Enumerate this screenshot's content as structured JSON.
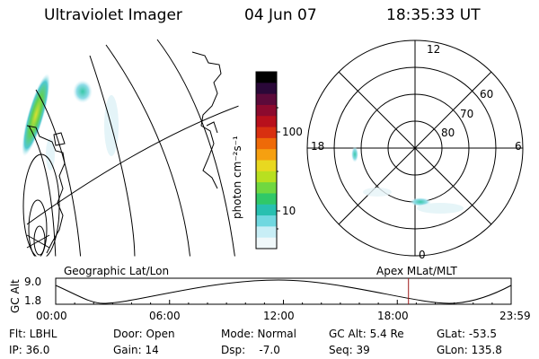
{
  "header": {
    "instrument": "Ultraviolet Imager",
    "date": "04 Jun 07",
    "time": "18:35:33 UT"
  },
  "colorbar": {
    "label": "photon cm⁻²s⁻¹",
    "ticks": [
      "100",
      "10"
    ],
    "colors": [
      "#000000",
      "#2a0838",
      "#5c0a3a",
      "#8c0a2e",
      "#b8101c",
      "#d83010",
      "#ee6a08",
      "#f6a010",
      "#e8d820",
      "#b8e020",
      "#70d840",
      "#30c868",
      "#28c0b0",
      "#70d8e0",
      "#c8eef6",
      "#f0f8fa"
    ]
  },
  "polar": {
    "mlt_labels": [
      "12",
      "18",
      "6",
      "0"
    ],
    "lat_labels": [
      "60",
      "70",
      "80"
    ]
  },
  "timeline": {
    "left_label": "Geographic Lat/Lon",
    "right_label": "Apex  MLat/MLT",
    "ylabel": "GC Alt",
    "ymax": "9.0",
    "ymin": "1.8",
    "times": [
      "00:00",
      "06:00",
      "12:00",
      "18:00",
      "23:59"
    ],
    "current_hour": 18.59
  },
  "info": {
    "filter": "Flt: LBHL",
    "door": "Door: Open",
    "mode": "Mode: Normal",
    "gc_alt": "GC Alt: 5.4 Re",
    "glat": "GLat: -53.5",
    "ip": "IP: 36.0",
    "gain": "Gain: 14",
    "dsp": "Dsp:    -7.0",
    "seq": "Seq: 39",
    "glon": "GLon: 135.8"
  }
}
